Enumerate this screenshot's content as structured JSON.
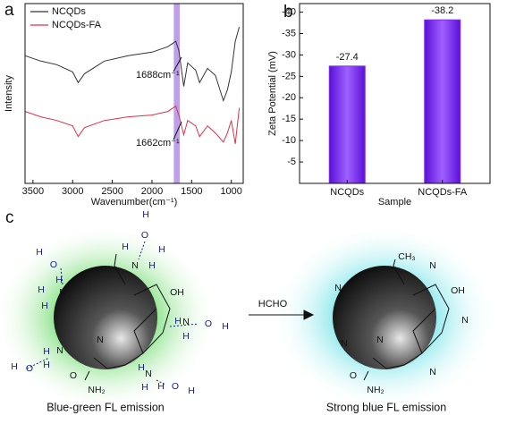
{
  "chart_data": [
    {
      "type": "line",
      "label": "a",
      "xlabel": "Wavenumber(cm⁻¹)",
      "ylabel": "Intensity",
      "x": [
        3600,
        3400,
        3200,
        3000,
        2930,
        2850,
        2600,
        2300,
        2000,
        1800,
        1700,
        1662,
        1600,
        1550,
        1450,
        1400,
        1300,
        1200,
        1100,
        1050,
        1000,
        950,
        900
      ],
      "series": [
        {
          "name": "NCQDs",
          "color": "#333333",
          "values": [
            71,
            68,
            66,
            62,
            56,
            61,
            68,
            71,
            73,
            76,
            79,
            74,
            54,
            67,
            63,
            56,
            64,
            60,
            46,
            52,
            62,
            79,
            87
          ]
        },
        {
          "name": "NCQDs-FA",
          "color": "#e0304a",
          "values": [
            40,
            37,
            35,
            32,
            26,
            31,
            35,
            37,
            38,
            40,
            43,
            38,
            27,
            35,
            32,
            26,
            32,
            28,
            23,
            28,
            35,
            22,
            42
          ]
        }
      ],
      "band": [
        1725,
        1650
      ],
      "band_color": "#b28ee8",
      "annotations": [
        "1688cm⁻¹",
        "1662cm⁻¹"
      ],
      "xlim": [
        3600,
        850
      ],
      "xticks": [
        3500,
        3000,
        2500,
        2000,
        1500,
        1000
      ],
      "ylim": [
        0,
        100
      ],
      "legend": "upper left",
      "grid": false
    },
    {
      "type": "bar",
      "label": "b",
      "xlabel": "Sample",
      "ylabel": "Zeta Potential (mV)",
      "categories": [
        "NCQDs",
        "NCQDs-FA"
      ],
      "values": [
        -27.4,
        -38.2
      ],
      "color": "#7f2fe8",
      "ylim": [
        0,
        -42
      ],
      "yticks": [
        -5,
        -10,
        -15,
        -20,
        -25,
        -30,
        -35,
        -40
      ],
      "grid": false
    }
  ],
  "diagram": {
    "label": "c",
    "reagent": "HCHO",
    "left_caption": "Blue-green FL emission",
    "right_caption": "Strong blue FL emission",
    "left_labels": [
      "H",
      "O",
      "H",
      "H",
      "N",
      "H",
      "H",
      "O",
      "H",
      "H",
      "N",
      "H",
      "OH",
      "H",
      "N",
      "H",
      "O",
      "H",
      "H",
      "O",
      "H",
      "N",
      "H",
      "O",
      "NH₂",
      "H",
      "N",
      "H",
      "H",
      "O",
      "H",
      "N"
    ],
    "right_labels": [
      "CH₃",
      "N",
      "OH",
      "N",
      "N",
      "N",
      "O",
      "NH₂",
      "N",
      "N"
    ]
  }
}
